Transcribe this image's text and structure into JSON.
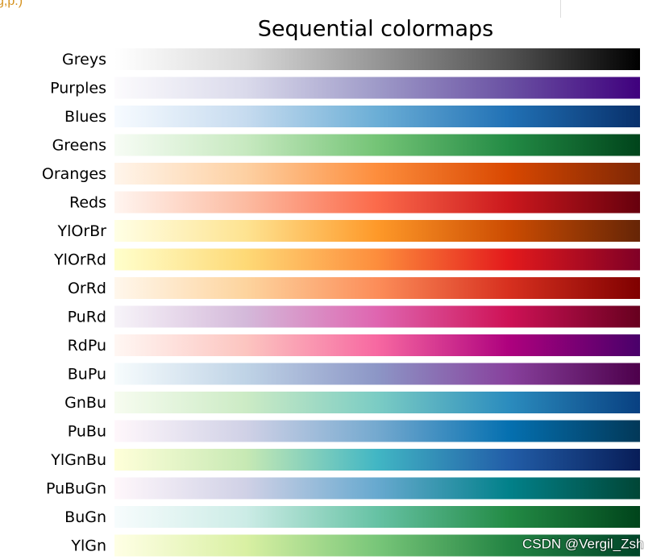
{
  "page_fragment": "g,p.)",
  "watermark": "CSDN @Vergil_Zsh",
  "chart_data": {
    "type": "colormap",
    "title": "Sequential colormaps",
    "categories": [
      "Greys",
      "Purples",
      "Blues",
      "Greens",
      "Oranges",
      "Reds",
      "YlOrBr",
      "YlOrRd",
      "OrRd",
      "PuRd",
      "RdPu",
      "BuPu",
      "GnBu",
      "PuBu",
      "YlGnBu",
      "PuBuGn",
      "BuGn",
      "YlGn"
    ],
    "gradients": [
      [
        "#ffffff",
        "#d9d9d9",
        "#969696",
        "#525252",
        "#000000"
      ],
      [
        "#fcfbfd",
        "#dadaeb",
        "#9e9ac8",
        "#6a51a3",
        "#3f007d"
      ],
      [
        "#f7fbff",
        "#c6dbef",
        "#6baed6",
        "#2171b5",
        "#08306b"
      ],
      [
        "#f7fcf5",
        "#c7e9c0",
        "#74c476",
        "#238b45",
        "#00441b"
      ],
      [
        "#fff5eb",
        "#fdd0a2",
        "#fd8d3c",
        "#d94801",
        "#7f2704"
      ],
      [
        "#fff5f0",
        "#fcbba1",
        "#fb6a4a",
        "#cb181d",
        "#67000d"
      ],
      [
        "#ffffe5",
        "#fee391",
        "#fe9929",
        "#cc4c02",
        "#662506"
      ],
      [
        "#ffffcc",
        "#fed976",
        "#fd8d3c",
        "#e31a1c",
        "#800026"
      ],
      [
        "#fff7ec",
        "#fdd49e",
        "#fc8d59",
        "#d7301f",
        "#7f0000"
      ],
      [
        "#f7f4f9",
        "#d4b9da",
        "#df65b0",
        "#ce1256",
        "#67001f"
      ],
      [
        "#fff7f3",
        "#fcc5c0",
        "#f768a1",
        "#ae017e",
        "#49006a"
      ],
      [
        "#f7fcfd",
        "#bfd3e6",
        "#8c96c6",
        "#88419d",
        "#4d004b"
      ],
      [
        "#f7fcf0",
        "#ccebc5",
        "#7bccc4",
        "#2b8cbe",
        "#084081"
      ],
      [
        "#fff7fb",
        "#d0d1e6",
        "#74a9cf",
        "#0570b0",
        "#023858"
      ],
      [
        "#ffffd9",
        "#c7e9b4",
        "#41b6c4",
        "#225ea8",
        "#081d58"
      ],
      [
        "#fff7fb",
        "#d0d1e6",
        "#67a9cf",
        "#02818a",
        "#014636"
      ],
      [
        "#f7fcfd",
        "#ccece6",
        "#66c2a4",
        "#238b45",
        "#00441b"
      ],
      [
        "#ffffe5",
        "#d9f0a3",
        "#78c679",
        "#238443",
        "#004529"
      ]
    ]
  }
}
